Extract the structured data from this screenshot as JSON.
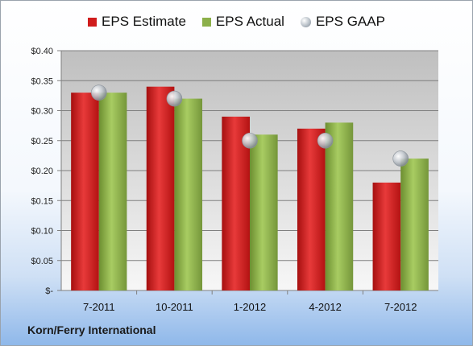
{
  "company": "Korn/Ferry International",
  "legend": {
    "estimate": "EPS Estimate",
    "actual": "EPS Actual",
    "gaap": "EPS GAAP"
  },
  "colors": {
    "estimate": "#d01c1c",
    "actual": "#8cb04a",
    "gaap": "#b8c0c8"
  },
  "chart_data": {
    "type": "bar",
    "categories": [
      "7-2011",
      "10-2011",
      "1-2012",
      "4-2012",
      "7-2012"
    ],
    "series": [
      {
        "name": "EPS Estimate",
        "values": [
          0.33,
          0.34,
          0.29,
          0.27,
          0.18
        ]
      },
      {
        "name": "EPS Actual",
        "values": [
          0.33,
          0.32,
          0.26,
          0.28,
          0.22
        ]
      },
      {
        "name": "EPS GAAP",
        "values": [
          0.33,
          0.32,
          0.25,
          0.25,
          0.22
        ]
      }
    ],
    "ylim": [
      0,
      0.4
    ],
    "yticks": [
      0,
      0.05,
      0.1,
      0.15,
      0.2,
      0.25,
      0.3,
      0.35,
      0.4
    ],
    "ytick_labels": [
      "$-",
      "$0.05",
      "$0.10",
      "$0.15",
      "$0.20",
      "$0.25",
      "$0.30",
      "$0.35",
      "$0.40"
    ],
    "grid": true,
    "legend_position": "top"
  }
}
